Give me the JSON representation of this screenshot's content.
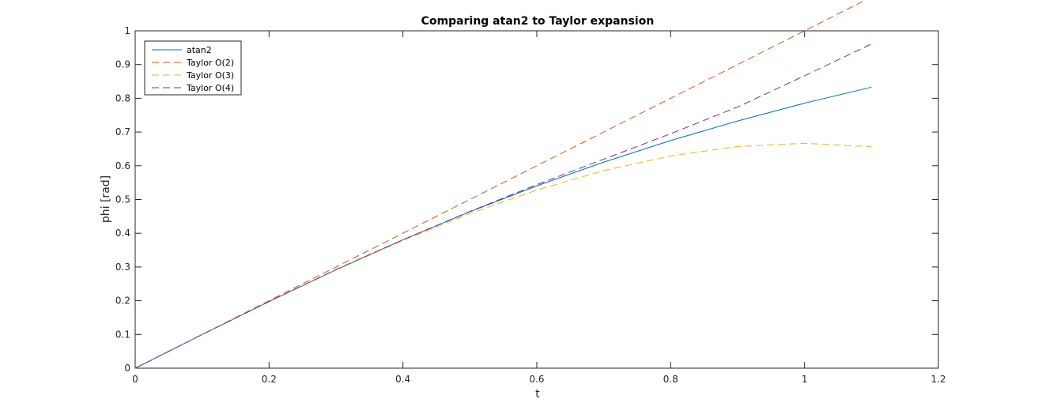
{
  "chart_data": {
    "type": "line",
    "title": "Comparing atan2 to Taylor expansion",
    "xlabel": "t",
    "ylabel": "phi [rad]",
    "xlim": [
      0,
      1.2
    ],
    "ylim": [
      0,
      1
    ],
    "xticks": [
      0,
      0.2,
      0.4,
      0.6,
      0.8,
      1,
      1.2
    ],
    "xtick_labels": [
      "0",
      "0.2",
      "0.4",
      "0.6",
      "0.8",
      "1",
      "1.2"
    ],
    "yticks": [
      0,
      0.1,
      0.2,
      0.3,
      0.4,
      0.5,
      0.6,
      0.7,
      0.8,
      0.9,
      1
    ],
    "ytick_labels": [
      "0",
      "0.1",
      "0.2",
      "0.3",
      "0.4",
      "0.5",
      "0.6",
      "0.7",
      "0.8",
      "0.9",
      "1"
    ],
    "grid": false,
    "legend_position": "top-left",
    "x": [
      0,
      0.1,
      0.2,
      0.3,
      0.4,
      0.5,
      0.6,
      0.7,
      0.8,
      0.9,
      1.0,
      1.1
    ],
    "series": [
      {
        "name": "atan2",
        "color": "#0072BD",
        "dash": "solid",
        "values": [
          0,
          0.0997,
          0.1974,
          0.2915,
          0.3805,
          0.4636,
          0.5404,
          0.6107,
          0.6747,
          0.7328,
          0.7854,
          0.833
        ]
      },
      {
        "name": "Taylor O(2)",
        "color": "#D95319",
        "dash": "dashed",
        "values": [
          0,
          0.1,
          0.2,
          0.3,
          0.4,
          0.5,
          0.6,
          0.7,
          0.8,
          0.9,
          1.0,
          1.1
        ]
      },
      {
        "name": "Taylor O(3)",
        "color": "#EDB120",
        "dash": "dashed",
        "values": [
          0,
          0.0997,
          0.1973,
          0.291,
          0.3787,
          0.4583,
          0.528,
          0.5857,
          0.6293,
          0.657,
          0.6667,
          0.6563
        ]
      },
      {
        "name": "Taylor O(4)",
        "color": "#7E2F8E",
        "dash": "dashed",
        "values": [
          0,
          0.0997,
          0.1975,
          0.2925,
          0.3807,
          0.4646,
          0.544,
          0.6194,
          0.695,
          0.7741,
          0.8667,
          0.961
        ]
      }
    ]
  }
}
